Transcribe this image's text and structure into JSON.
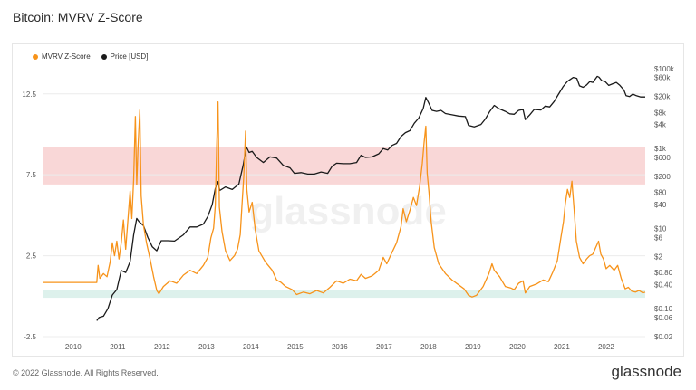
{
  "title": "Bitcoin: MVRV Z-Score",
  "footer": "© 2022 Glassnode. All Rights Reserved.",
  "brand": "glassnode",
  "watermark": "glassnode",
  "colors": {
    "zscore": "#f7931a",
    "price": "#1a1a1a",
    "red_band": "#f7c9c9",
    "green_band": "#d9f0ea",
    "grid": "#ececec",
    "axis_text": "#555555"
  },
  "chart_data": {
    "type": "line",
    "title": "Bitcoin: MVRV Z-Score",
    "legend": {
      "placement": "top-left",
      "entries": [
        "MVRV Z-Score",
        "Price [USD]"
      ]
    },
    "x_tick_labels": [
      "2010",
      "2011",
      "2012",
      "2013",
      "2014",
      "2015",
      "2016",
      "2017",
      "2018",
      "2019",
      "2020",
      "2021",
      "2022"
    ],
    "x_range": [
      2009.35,
      2022.9
    ],
    "y_left": {
      "ticks": [
        12.5,
        7.5,
        2.5,
        -2.5
      ],
      "range": [
        -2.5,
        14.5
      ]
    },
    "y_right": {
      "scale": "log",
      "ticks": [
        "$100k",
        "$60k",
        "$20k",
        "$8k",
        "$4k",
        "$1k",
        "$600",
        "$200",
        "$80",
        "$40",
        "$10",
        "$6",
        "$2",
        "$0.80",
        "$0.40",
        "$0.10",
        "$0.06",
        "$0.02"
      ]
    },
    "bands": [
      {
        "name": "red",
        "from": 6.9,
        "to": 9.2
      },
      {
        "name": "green",
        "from": -0.1,
        "to": 0.4
      }
    ],
    "series": [
      {
        "name": "MVRV Z-Score",
        "axis": "left",
        "points": [
          [
            2009.35,
            0.85
          ],
          [
            2010.55,
            0.85
          ],
          [
            2010.58,
            1.9
          ],
          [
            2010.62,
            1.1
          ],
          [
            2010.7,
            1.4
          ],
          [
            2010.78,
            1.2
          ],
          [
            2010.85,
            2.1
          ],
          [
            2010.9,
            3.3
          ],
          [
            2010.95,
            2.5
          ],
          [
            2011.0,
            3.4
          ],
          [
            2011.05,
            2.3
          ],
          [
            2011.1,
            3.3
          ],
          [
            2011.15,
            4.7
          ],
          [
            2011.2,
            2.9
          ],
          [
            2011.3,
            6.5
          ],
          [
            2011.34,
            4.8
          ],
          [
            2011.38,
            7.2
          ],
          [
            2011.42,
            11.1
          ],
          [
            2011.45,
            6.9
          ],
          [
            2011.48,
            9.3
          ],
          [
            2011.52,
            11.5
          ],
          [
            2011.55,
            6.2
          ],
          [
            2011.6,
            4.4
          ],
          [
            2011.67,
            3.3
          ],
          [
            2011.75,
            2.3
          ],
          [
            2011.83,
            1.2
          ],
          [
            2011.9,
            0.35
          ],
          [
            2011.95,
            0.15
          ],
          [
            2012.05,
            0.6
          ],
          [
            2012.2,
            0.95
          ],
          [
            2012.35,
            0.8
          ],
          [
            2012.5,
            1.3
          ],
          [
            2012.65,
            1.6
          ],
          [
            2012.8,
            1.4
          ],
          [
            2012.95,
            1.9
          ],
          [
            2013.05,
            2.4
          ],
          [
            2013.12,
            3.6
          ],
          [
            2013.18,
            4.2
          ],
          [
            2013.22,
            5.6
          ],
          [
            2013.25,
            9.2
          ],
          [
            2013.28,
            12.0
          ],
          [
            2013.31,
            5.5
          ],
          [
            2013.37,
            4.0
          ],
          [
            2013.45,
            2.8
          ],
          [
            2013.55,
            2.2
          ],
          [
            2013.65,
            2.5
          ],
          [
            2013.72,
            2.9
          ],
          [
            2013.78,
            3.8
          ],
          [
            2013.82,
            5.6
          ],
          [
            2013.86,
            7.4
          ],
          [
            2013.9,
            10.2
          ],
          [
            2013.93,
            6.6
          ],
          [
            2013.98,
            5.2
          ],
          [
            2014.05,
            5.8
          ],
          [
            2014.12,
            4.1
          ],
          [
            2014.2,
            2.8
          ],
          [
            2014.35,
            2.1
          ],
          [
            2014.5,
            1.6
          ],
          [
            2014.6,
            1.0
          ],
          [
            2014.7,
            0.85
          ],
          [
            2014.8,
            0.6
          ],
          [
            2014.95,
            0.4
          ],
          [
            2015.05,
            0.1
          ],
          [
            2015.2,
            0.25
          ],
          [
            2015.35,
            0.15
          ],
          [
            2015.5,
            0.35
          ],
          [
            2015.65,
            0.2
          ],
          [
            2015.8,
            0.55
          ],
          [
            2015.95,
            0.95
          ],
          [
            2016.1,
            0.8
          ],
          [
            2016.25,
            1.05
          ],
          [
            2016.4,
            0.95
          ],
          [
            2016.5,
            1.35
          ],
          [
            2016.6,
            1.1
          ],
          [
            2016.75,
            1.25
          ],
          [
            2016.9,
            1.6
          ],
          [
            2017.0,
            2.4
          ],
          [
            2017.08,
            2.0
          ],
          [
            2017.18,
            2.6
          ],
          [
            2017.3,
            3.3
          ],
          [
            2017.4,
            4.3
          ],
          [
            2017.45,
            5.4
          ],
          [
            2017.52,
            4.6
          ],
          [
            2017.6,
            5.3
          ],
          [
            2017.68,
            6.1
          ],
          [
            2017.75,
            5.6
          ],
          [
            2017.82,
            6.8
          ],
          [
            2017.88,
            8.2
          ],
          [
            2017.92,
            9.5
          ],
          [
            2017.96,
            10.5
          ],
          [
            2017.99,
            7.6
          ],
          [
            2018.03,
            6.4
          ],
          [
            2018.08,
            4.6
          ],
          [
            2018.15,
            3.0
          ],
          [
            2018.25,
            2.0
          ],
          [
            2018.4,
            1.4
          ],
          [
            2018.55,
            1.0
          ],
          [
            2018.7,
            0.7
          ],
          [
            2018.82,
            0.45
          ],
          [
            2018.92,
            0.05
          ],
          [
            2019.0,
            -0.05
          ],
          [
            2019.1,
            0.05
          ],
          [
            2019.25,
            0.6
          ],
          [
            2019.38,
            1.4
          ],
          [
            2019.45,
            2.0
          ],
          [
            2019.5,
            1.6
          ],
          [
            2019.62,
            1.2
          ],
          [
            2019.75,
            0.6
          ],
          [
            2019.88,
            0.5
          ],
          [
            2019.95,
            0.4
          ],
          [
            2020.05,
            0.8
          ],
          [
            2020.15,
            0.95
          ],
          [
            2020.2,
            0.2
          ],
          [
            2020.3,
            0.6
          ],
          [
            2020.45,
            0.75
          ],
          [
            2020.6,
            1.0
          ],
          [
            2020.72,
            0.9
          ],
          [
            2020.82,
            1.5
          ],
          [
            2020.92,
            2.2
          ],
          [
            2021.0,
            3.6
          ],
          [
            2021.06,
            4.6
          ],
          [
            2021.1,
            5.7
          ],
          [
            2021.15,
            6.6
          ],
          [
            2021.2,
            6.1
          ],
          [
            2021.25,
            7.1
          ],
          [
            2021.3,
            5.3
          ],
          [
            2021.35,
            3.4
          ],
          [
            2021.42,
            2.4
          ],
          [
            2021.5,
            2.0
          ],
          [
            2021.58,
            2.3
          ],
          [
            2021.65,
            2.5
          ],
          [
            2021.72,
            2.6
          ],
          [
            2021.8,
            3.1
          ],
          [
            2021.85,
            3.4
          ],
          [
            2021.9,
            2.6
          ],
          [
            2021.96,
            2.3
          ],
          [
            2022.02,
            1.7
          ],
          [
            2022.1,
            1.9
          ],
          [
            2022.2,
            1.6
          ],
          [
            2022.28,
            1.9
          ],
          [
            2022.36,
            1.1
          ],
          [
            2022.45,
            0.45
          ],
          [
            2022.52,
            0.55
          ],
          [
            2022.6,
            0.3
          ],
          [
            2022.68,
            0.25
          ],
          [
            2022.76,
            0.35
          ],
          [
            2022.85,
            0.2
          ],
          [
            2022.9,
            0.25
          ]
        ]
      },
      {
        "name": "Price [USD]",
        "axis": "right",
        "points": [
          [
            2010.55,
            0.05
          ],
          [
            2010.6,
            0.06
          ],
          [
            2010.7,
            0.065
          ],
          [
            2010.8,
            0.1
          ],
          [
            2010.9,
            0.22
          ],
          [
            2011.0,
            0.3
          ],
          [
            2011.1,
            0.9
          ],
          [
            2011.2,
            0.8
          ],
          [
            2011.3,
            1.5
          ],
          [
            2011.38,
            7
          ],
          [
            2011.45,
            18
          ],
          [
            2011.5,
            15
          ],
          [
            2011.6,
            12
          ],
          [
            2011.7,
            6
          ],
          [
            2011.8,
            3.5
          ],
          [
            2011.9,
            2.8
          ],
          [
            2012.0,
            5
          ],
          [
            2012.15,
            5
          ],
          [
            2012.3,
            4.9
          ],
          [
            2012.5,
            7
          ],
          [
            2012.65,
            11
          ],
          [
            2012.8,
            11
          ],
          [
            2012.95,
            13
          ],
          [
            2013.05,
            20
          ],
          [
            2013.15,
            40
          ],
          [
            2013.22,
            100
          ],
          [
            2013.28,
            150
          ],
          [
            2013.32,
            90
          ],
          [
            2013.45,
            110
          ],
          [
            2013.6,
            95
          ],
          [
            2013.75,
            130
          ],
          [
            2013.85,
            400
          ],
          [
            2013.92,
            1100
          ],
          [
            2013.98,
            800
          ],
          [
            2014.05,
            850
          ],
          [
            2014.15,
            600
          ],
          [
            2014.3,
            450
          ],
          [
            2014.45,
            620
          ],
          [
            2014.6,
            580
          ],
          [
            2014.75,
            380
          ],
          [
            2014.9,
            330
          ],
          [
            2015.0,
            240
          ],
          [
            2015.15,
            250
          ],
          [
            2015.3,
            230
          ],
          [
            2015.45,
            230
          ],
          [
            2015.6,
            260
          ],
          [
            2015.75,
            240
          ],
          [
            2015.85,
            360
          ],
          [
            2015.95,
            430
          ],
          [
            2016.1,
            420
          ],
          [
            2016.25,
            420
          ],
          [
            2016.4,
            450
          ],
          [
            2016.5,
            680
          ],
          [
            2016.6,
            600
          ],
          [
            2016.75,
            620
          ],
          [
            2016.9,
            740
          ],
          [
            2017.0,
            1000
          ],
          [
            2017.1,
            920
          ],
          [
            2017.2,
            1200
          ],
          [
            2017.3,
            1350
          ],
          [
            2017.4,
            2000
          ],
          [
            2017.5,
            2500
          ],
          [
            2017.6,
            2800
          ],
          [
            2017.7,
            4300
          ],
          [
            2017.8,
            5800
          ],
          [
            2017.9,
            10000
          ],
          [
            2017.96,
            19000
          ],
          [
            2018.02,
            14000
          ],
          [
            2018.1,
            9000
          ],
          [
            2018.2,
            8500
          ],
          [
            2018.3,
            9000
          ],
          [
            2018.4,
            7500
          ],
          [
            2018.55,
            7000
          ],
          [
            2018.7,
            6500
          ],
          [
            2018.85,
            6300
          ],
          [
            2018.92,
            3800
          ],
          [
            2019.05,
            3500
          ],
          [
            2019.2,
            4000
          ],
          [
            2019.3,
            5500
          ],
          [
            2019.4,
            8500
          ],
          [
            2019.5,
            12000
          ],
          [
            2019.6,
            10000
          ],
          [
            2019.75,
            8500
          ],
          [
            2019.85,
            7400
          ],
          [
            2019.95,
            7200
          ],
          [
            2020.05,
            9000
          ],
          [
            2020.15,
            9500
          ],
          [
            2020.2,
            5300
          ],
          [
            2020.3,
            7000
          ],
          [
            2020.4,
            9500
          ],
          [
            2020.55,
            9200
          ],
          [
            2020.65,
            11500
          ],
          [
            2020.75,
            11000
          ],
          [
            2020.85,
            15000
          ],
          [
            2020.95,
            23000
          ],
          [
            2021.05,
            35000
          ],
          [
            2021.15,
            48000
          ],
          [
            2021.28,
            60000
          ],
          [
            2021.36,
            57000
          ],
          [
            2021.42,
            37000
          ],
          [
            2021.5,
            34000
          ],
          [
            2021.58,
            39000
          ],
          [
            2021.65,
            47000
          ],
          [
            2021.72,
            45000
          ],
          [
            2021.82,
            64000
          ],
          [
            2021.86,
            61000
          ],
          [
            2021.92,
            50000
          ],
          [
            2022.0,
            47000
          ],
          [
            2022.08,
            38000
          ],
          [
            2022.18,
            42000
          ],
          [
            2022.25,
            45000
          ],
          [
            2022.33,
            38000
          ],
          [
            2022.42,
            29000
          ],
          [
            2022.47,
            21000
          ],
          [
            2022.55,
            20000
          ],
          [
            2022.62,
            23000
          ],
          [
            2022.7,
            21000
          ],
          [
            2022.8,
            19500
          ],
          [
            2022.9,
            19500
          ]
        ]
      }
    ]
  }
}
